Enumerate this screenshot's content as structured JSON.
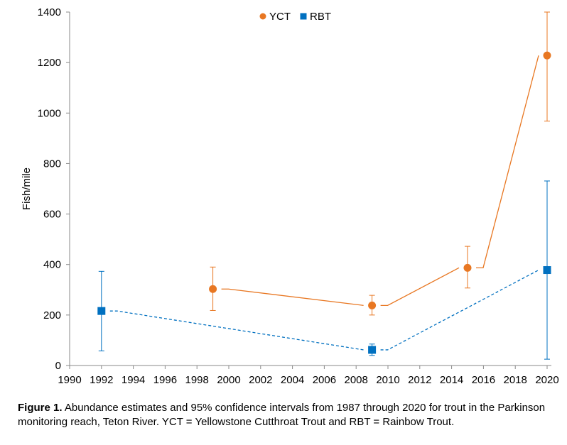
{
  "chart_data": {
    "type": "line",
    "title": "",
    "xlabel": "",
    "ylabel": "Fish/mile",
    "xlim": [
      1990,
      2020
    ],
    "ylim": [
      0,
      1400
    ],
    "x_ticks": [
      1990,
      1992,
      1994,
      1996,
      1998,
      2000,
      2002,
      2004,
      2006,
      2008,
      2010,
      2012,
      2014,
      2016,
      2018,
      2020
    ],
    "y_ticks": [
      0,
      200,
      400,
      600,
      800,
      1000,
      1200,
      1400
    ],
    "grid": false,
    "legend_position": "top-center",
    "series": [
      {
        "name": "YCT",
        "color": "#E87722",
        "marker": "circle",
        "line_style": "solid",
        "points": [
          {
            "x": 1999,
            "y": 303,
            "lower": 218,
            "upper": 390
          },
          {
            "x": 2009,
            "y": 238,
            "lower": 200,
            "upper": 278
          },
          {
            "x": 2015,
            "y": 387,
            "lower": 307,
            "upper": 472
          },
          {
            "x": 2020,
            "y": 1228,
            "lower": 968,
            "upper": 1400
          }
        ]
      },
      {
        "name": "RBT",
        "color": "#0070C0",
        "marker": "square",
        "line_style": "dashed",
        "points": [
          {
            "x": 1992,
            "y": 216,
            "lower": 58,
            "upper": 373
          },
          {
            "x": 2009,
            "y": 62,
            "lower": 40,
            "upper": 85
          },
          {
            "x": 2020,
            "y": 378,
            "lower": 25,
            "upper": 731
          }
        ]
      }
    ]
  },
  "caption": {
    "label": "Figure 1.",
    "text": " Abundance estimates and 95% confidence intervals from 1987 through 2020 for trout in the Parkinson monitoring reach, Teton River. YCT = Yellowstone Cutthroat Trout and RBT = Rainbow Trout."
  }
}
